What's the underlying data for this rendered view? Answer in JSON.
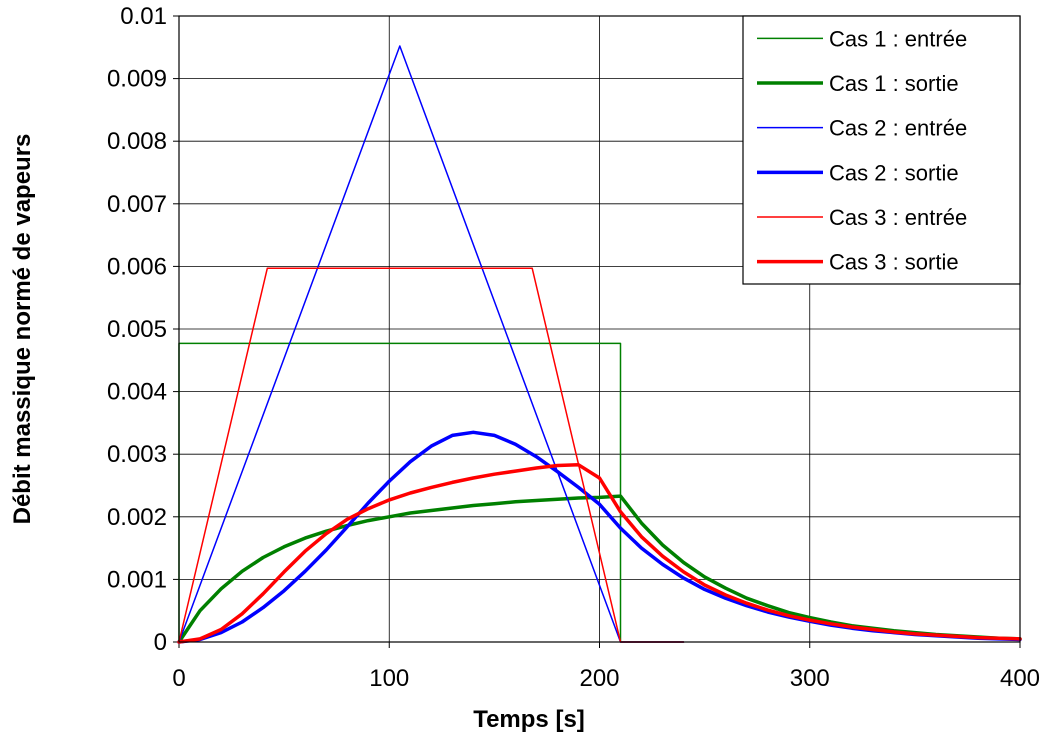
{
  "chart_data": {
    "type": "line",
    "xlabel": "Temps [s]",
    "ylabel": "Débit massique normé de vapeurs",
    "xlim": [
      0,
      400
    ],
    "ylim": [
      0,
      0.01
    ],
    "x_ticks": [
      "0",
      "100",
      "200",
      "300",
      "400"
    ],
    "y_ticks": [
      "0",
      "0.001",
      "0.002",
      "0.003",
      "0.004",
      "0.005",
      "0.006",
      "0.007",
      "0.008",
      "0.009",
      "0.01"
    ],
    "x_tick_values": [
      0,
      100,
      200,
      300,
      400
    ],
    "y_tick_values": [
      0,
      0.001,
      0.002,
      0.003,
      0.004,
      0.005,
      0.006,
      0.007,
      0.008,
      0.009,
      0.01
    ],
    "grid": true,
    "legend_position": "top-right",
    "series": [
      {
        "name": "Cas 1 : entrée",
        "color": "#008000",
        "weight": "thin",
        "x": [
          0,
          0,
          210,
          210,
          240
        ],
        "y": [
          0,
          0.00477,
          0.00477,
          0,
          0
        ]
      },
      {
        "name": "Cas 1 : sortie",
        "color": "#008000",
        "weight": "thick",
        "x": [
          0,
          10,
          20,
          30,
          40,
          50,
          60,
          70,
          80,
          90,
          100,
          110,
          120,
          130,
          140,
          150,
          160,
          170,
          180,
          190,
          200,
          210,
          220,
          230,
          240,
          250,
          260,
          270,
          280,
          290,
          300,
          310,
          320,
          330,
          340,
          350,
          360,
          370,
          380,
          390,
          400
        ],
        "y": [
          0,
          0.0005,
          0.00085,
          0.00113,
          0.00135,
          0.00152,
          0.00166,
          0.00177,
          0.00186,
          0.00194,
          0.002,
          0.00206,
          0.0021,
          0.00214,
          0.00218,
          0.00221,
          0.00224,
          0.00226,
          0.00228,
          0.0023,
          0.00231,
          0.00233,
          0.0019,
          0.00155,
          0.00127,
          0.00104,
          0.00086,
          0.0007,
          0.00058,
          0.00047,
          0.00039,
          0.00032,
          0.00026,
          0.00022,
          0.00018,
          0.00015,
          0.00012,
          0.0001,
          8e-05,
          6e-05,
          5e-05
        ]
      },
      {
        "name": "Cas 2 : entrée",
        "color": "#0000ff",
        "weight": "thin",
        "x": [
          0,
          105,
          210,
          240
        ],
        "y": [
          0,
          0.00952,
          0,
          0
        ]
      },
      {
        "name": "Cas 2 : sortie",
        "color": "#0000ff",
        "weight": "thick",
        "x": [
          0,
          10,
          20,
          30,
          40,
          50,
          60,
          70,
          80,
          90,
          100,
          110,
          120,
          130,
          140,
          150,
          160,
          170,
          180,
          190,
          200,
          210,
          220,
          230,
          240,
          250,
          260,
          270,
          280,
          290,
          300,
          310,
          320,
          330,
          340,
          350,
          360,
          370,
          380,
          390,
          400
        ],
        "y": [
          0,
          4e-05,
          0.00015,
          0.00032,
          0.00055,
          0.00082,
          0.00113,
          0.00147,
          0.00184,
          0.00222,
          0.00257,
          0.00288,
          0.00313,
          0.0033,
          0.00335,
          0.0033,
          0.00316,
          0.00296,
          0.00272,
          0.00247,
          0.0022,
          0.00182,
          0.0015,
          0.00124,
          0.00102,
          0.00084,
          0.0007,
          0.00058,
          0.00048,
          0.0004,
          0.00033,
          0.00027,
          0.00022,
          0.00018,
          0.00015,
          0.00012,
          0.0001,
          8e-05,
          6e-05,
          5e-05,
          4e-05
        ]
      },
      {
        "name": "Cas 3 : entrée",
        "color": "#ff0000",
        "weight": "thin",
        "x": [
          0,
          42,
          168,
          210,
          240
        ],
        "y": [
          0,
          0.00597,
          0.00597,
          0,
          0
        ]
      },
      {
        "name": "Cas 3 : sortie",
        "color": "#ff0000",
        "weight": "thick",
        "x": [
          0,
          10,
          20,
          30,
          40,
          50,
          60,
          70,
          80,
          90,
          100,
          110,
          120,
          130,
          140,
          150,
          160,
          170,
          180,
          190,
          200,
          210,
          220,
          230,
          240,
          250,
          260,
          270,
          280,
          290,
          300,
          310,
          320,
          330,
          340,
          350,
          360,
          370,
          380,
          390,
          400
        ],
        "y": [
          0,
          5e-05,
          0.0002,
          0.00045,
          0.00077,
          0.00112,
          0.00145,
          0.00173,
          0.00196,
          0.00213,
          0.00227,
          0.00238,
          0.00247,
          0.00255,
          0.00262,
          0.00268,
          0.00273,
          0.00278,
          0.00282,
          0.00283,
          0.00262,
          0.00208,
          0.00168,
          0.00137,
          0.00112,
          0.00091,
          0.00075,
          0.00062,
          0.00051,
          0.00042,
          0.00035,
          0.00029,
          0.00024,
          0.0002,
          0.00016,
          0.00013,
          0.00011,
          9e-05,
          7e-05,
          6e-05,
          5e-05
        ]
      }
    ]
  }
}
